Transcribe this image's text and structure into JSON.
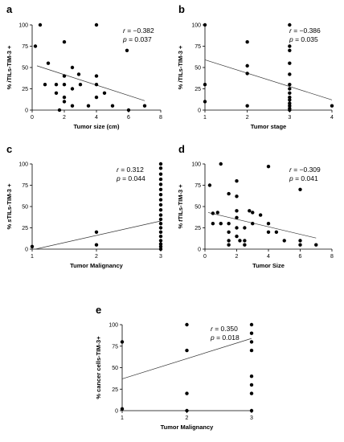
{
  "chart_data": [
    {
      "panel": "a",
      "type": "scatter",
      "xlabel": "Tumor size (cm)",
      "ylabel_italic": "i",
      "ylabel_rest": "TILs-TIM-3 +",
      "stat_r": "r = −0.382",
      "stat_p": "p = 0.037",
      "xlim": [
        0,
        8
      ],
      "ylim": [
        0,
        100
      ],
      "xticks": [
        "0",
        "2",
        "4",
        "6",
        "8"
      ],
      "yticks": [
        "0",
        "25",
        "50",
        "75",
        "100"
      ],
      "fit_line": [
        [
          0.3,
          52
        ],
        [
          7,
          11
        ]
      ],
      "points": [
        [
          0.2,
          75
        ],
        [
          0.5,
          100
        ],
        [
          0.8,
          30
        ],
        [
          1,
          55
        ],
        [
          1.5,
          20
        ],
        [
          1.5,
          30
        ],
        [
          1.7,
          0
        ],
        [
          2,
          80
        ],
        [
          2,
          40
        ],
        [
          2,
          30
        ],
        [
          2,
          15
        ],
        [
          2,
          10
        ],
        [
          2.5,
          50
        ],
        [
          2.5,
          5
        ],
        [
          2.5,
          25
        ],
        [
          2.9,
          42
        ],
        [
          3,
          30
        ],
        [
          3.5,
          5
        ],
        [
          4,
          100
        ],
        [
          4,
          30
        ],
        [
          4,
          40
        ],
        [
          4,
          15
        ],
        [
          4.5,
          20
        ],
        [
          5,
          5
        ],
        [
          5.9,
          70
        ],
        [
          6,
          0
        ],
        [
          7,
          5
        ]
      ]
    },
    {
      "panel": "b",
      "type": "scatter",
      "xlabel": "Tumor stage",
      "ylabel_italic": "i",
      "ylabel_rest": "TILs-TIM-3 +",
      "stat_r": "r = −0.386",
      "stat_p": "p = 0.035",
      "xlim": [
        1,
        4
      ],
      "ylim": [
        0,
        100
      ],
      "xticks": [
        "1",
        "2",
        "3",
        "4"
      ],
      "yticks": [
        "0",
        "25",
        "50",
        "75",
        "100"
      ],
      "fit_line": [
        [
          1,
          59
        ],
        [
          4,
          12
        ]
      ],
      "points": [
        [
          1,
          100
        ],
        [
          1,
          30
        ],
        [
          1,
          10
        ],
        [
          2,
          80
        ],
        [
          2,
          52
        ],
        [
          2,
          43
        ],
        [
          2,
          5
        ],
        [
          3,
          100
        ],
        [
          3,
          75
        ],
        [
          3,
          70
        ],
        [
          3,
          55
        ],
        [
          3,
          42
        ],
        [
          3,
          30
        ],
        [
          3,
          25
        ],
        [
          3,
          20
        ],
        [
          3,
          15
        ],
        [
          3,
          12
        ],
        [
          3,
          8
        ],
        [
          3,
          5
        ],
        [
          3,
          2
        ],
        [
          3,
          0
        ],
        [
          4,
          5
        ]
      ]
    },
    {
      "panel": "c",
      "type": "scatter",
      "xlabel": "Tumor Malignancy",
      "ylabel_italic": "s",
      "ylabel_rest": "TILs-TIM-3 +",
      "stat_r": "r = 0.312",
      "stat_p": "p = 0.044",
      "xlim": [
        1,
        3
      ],
      "ylim": [
        0,
        100
      ],
      "xticks": [
        "1",
        "2",
        "3"
      ],
      "yticks": [
        "0",
        "25",
        "50",
        "75",
        "100"
      ],
      "fit_line": [
        [
          1.05,
          0
        ],
        [
          3,
          33
        ]
      ],
      "points": [
        [
          1,
          3
        ],
        [
          2,
          20
        ],
        [
          2,
          5
        ],
        [
          3,
          100
        ],
        [
          3,
          95
        ],
        [
          3,
          88
        ],
        [
          3,
          82
        ],
        [
          3,
          76
        ],
        [
          3,
          70
        ],
        [
          3,
          64
        ],
        [
          3,
          58
        ],
        [
          3,
          52
        ],
        [
          3,
          46
        ],
        [
          3,
          40
        ],
        [
          3,
          35
        ],
        [
          3,
          30
        ],
        [
          3,
          25
        ],
        [
          3,
          20
        ],
        [
          3,
          15
        ],
        [
          3,
          10
        ],
        [
          3,
          6
        ],
        [
          3,
          3
        ],
        [
          3,
          0
        ]
      ]
    },
    {
      "panel": "d",
      "type": "scatter",
      "xlabel": "Tumor Size",
      "ylabel_italic": "t",
      "ylabel_rest": "TILs-TIM-3 +",
      "stat_r": "r = −0.309",
      "stat_p": "p = 0.041",
      "xlim": [
        0,
        8
      ],
      "ylim": [
        0,
        100
      ],
      "xticks": [
        "0",
        "2",
        "4",
        "6",
        "8"
      ],
      "yticks": [
        "0",
        "25",
        "50",
        "75",
        "100"
      ],
      "fit_line": [
        [
          0.2,
          43
        ],
        [
          7,
          13
        ]
      ],
      "points": [
        [
          0.3,
          75
        ],
        [
          0.5,
          30
        ],
        [
          0.5,
          42
        ],
        [
          0.8,
          43
        ],
        [
          1,
          100
        ],
        [
          1,
          30
        ],
        [
          1.5,
          65
        ],
        [
          1.5,
          30
        ],
        [
          1.5,
          20
        ],
        [
          1.5,
          10
        ],
        [
          1.5,
          5
        ],
        [
          2,
          80
        ],
        [
          2,
          62
        ],
        [
          2,
          45
        ],
        [
          2,
          37
        ],
        [
          2,
          25
        ],
        [
          2,
          15
        ],
        [
          2.2,
          10
        ],
        [
          2.5,
          25
        ],
        [
          2.5,
          10
        ],
        [
          2.5,
          5
        ],
        [
          2.8,
          45
        ],
        [
          3,
          43
        ],
        [
          3,
          30
        ],
        [
          3.5,
          40
        ],
        [
          4,
          97
        ],
        [
          4,
          30
        ],
        [
          4,
          20
        ],
        [
          4.5,
          20
        ],
        [
          5,
          10
        ],
        [
          6,
          70
        ],
        [
          6,
          10
        ],
        [
          6,
          5
        ],
        [
          7,
          5
        ]
      ]
    },
    {
      "panel": "e",
      "type": "scatter",
      "xlabel": "Tumor Malignancy",
      "ylabel_italic": "",
      "ylabel_rest": "cancer cells-TIM-3+",
      "stat_r": "r = 0.350",
      "stat_p": "p = 0.018",
      "xlim": [
        1,
        3
      ],
      "ylim": [
        0,
        100
      ],
      "xticks": [
        "1",
        "2",
        "3"
      ],
      "yticks": [
        "0",
        "25",
        "50",
        "75",
        "100"
      ],
      "fit_line": [
        [
          1,
          37
        ],
        [
          3,
          84
        ]
      ],
      "points": [
        [
          1,
          80
        ],
        [
          1,
          2
        ],
        [
          2,
          100
        ],
        [
          2,
          70
        ],
        [
          2,
          20
        ],
        [
          2,
          0
        ],
        [
          3,
          100
        ],
        [
          3,
          90
        ],
        [
          3,
          80
        ],
        [
          3,
          70
        ],
        [
          3,
          40
        ],
        [
          3,
          30
        ],
        [
          3,
          20
        ],
        [
          3,
          0
        ]
      ]
    }
  ]
}
